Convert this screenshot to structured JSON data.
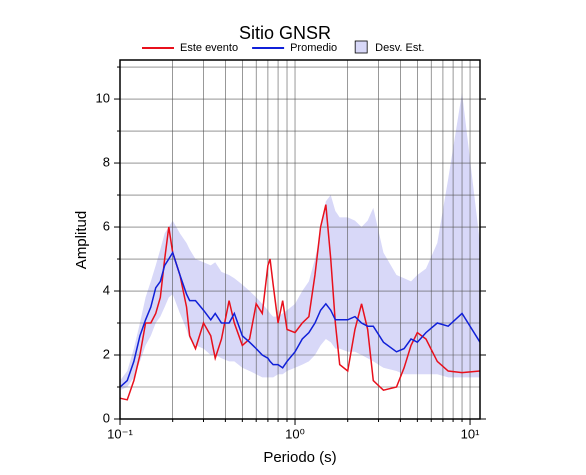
{
  "chart_data": {
    "type": "line",
    "title": "Sitio GNSR",
    "x_label": "Periodo (s)",
    "y_label": "Amplitud",
    "xlog": true,
    "grid": true,
    "xlim": [
      0.1,
      11.4
    ],
    "ylim": [
      0,
      11.22
    ],
    "xticks": [
      {
        "value": 0.1,
        "label": "10⁻¹"
      },
      {
        "value": 1,
        "label": "10⁰"
      },
      {
        "value": 10,
        "label": "10¹"
      }
    ],
    "xminor": [
      0.2,
      0.3,
      0.4,
      0.5,
      0.6,
      0.7,
      0.8,
      0.9,
      2,
      3,
      4,
      5,
      6,
      7,
      8,
      9
    ],
    "yticks": [
      0,
      2,
      4,
      6,
      8,
      10
    ],
    "yminor": [
      1,
      3,
      5,
      7,
      9,
      11
    ],
    "x": [
      0.1,
      0.11,
      0.12,
      0.13,
      0.14,
      0.15,
      0.16,
      0.17,
      0.18,
      0.19,
      0.2,
      0.22,
      0.24,
      0.25,
      0.27,
      0.3,
      0.33,
      0.35,
      0.38,
      0.42,
      0.45,
      0.5,
      0.55,
      0.6,
      0.65,
      0.7,
      0.72,
      0.75,
      0.8,
      0.85,
      0.9,
      1.0,
      1.1,
      1.2,
      1.3,
      1.4,
      1.5,
      1.6,
      1.7,
      1.8,
      2.0,
      2.2,
      2.4,
      2.6,
      2.8,
      3.2,
      3.8,
      4.2,
      4.6,
      5.0,
      5.6,
      6.5,
      7.5,
      9,
      11.4
    ],
    "band": {
      "name": "Desv. Est.",
      "color": "#d8d8f8",
      "lower": [
        0.9,
        1.0,
        1.3,
        1.8,
        2.3,
        2.6,
        3.0,
        3.2,
        3.5,
        3.8,
        3.9,
        3.3,
        2.8,
        2.5,
        2.3,
        2.2,
        2.0,
        2.0,
        1.9,
        1.8,
        1.8,
        1.6,
        1.5,
        1.4,
        1.3,
        1.3,
        1.3,
        1.3,
        1.4,
        1.4,
        1.5,
        1.6,
        1.7,
        1.8,
        2.0,
        2.3,
        2.5,
        2.4,
        2.2,
        2.2,
        2.1,
        2.1,
        2.0,
        1.9,
        1.8,
        1.6,
        1.5,
        1.4,
        1.4,
        1.4,
        1.4,
        1.4,
        1.3,
        1.3,
        1.3
      ],
      "upper": [
        1.2,
        1.5,
        2.2,
        3.0,
        3.8,
        4.3,
        4.8,
        5.3,
        5.8,
        6.0,
        6.2,
        5.8,
        5.5,
        5.3,
        5.0,
        4.9,
        4.8,
        4.9,
        4.6,
        4.5,
        4.4,
        4.2,
        4.0,
        3.8,
        3.6,
        3.4,
        3.3,
        3.2,
        3.2,
        3.3,
        3.4,
        3.6,
        4.0,
        4.3,
        5.0,
        5.8,
        6.8,
        7.0,
        6.5,
        6.3,
        6.3,
        6.2,
        6.0,
        6.2,
        6.6,
        5.2,
        4.5,
        4.4,
        4.3,
        4.5,
        4.7,
        5.5,
        7.5,
        10.2,
        5.5
      ]
    },
    "series": [
      {
        "name": "Este evento",
        "color": "#e8101c",
        "values": [
          0.65,
          0.6,
          1.2,
          2.0,
          3.0,
          3.0,
          3.3,
          3.8,
          5.0,
          6.0,
          5.2,
          4.5,
          3.5,
          2.6,
          2.2,
          3.0,
          2.6,
          1.9,
          2.5,
          3.7,
          3.0,
          2.3,
          2.5,
          3.6,
          3.3,
          4.8,
          5.0,
          4.2,
          3.0,
          3.7,
          2.8,
          2.7,
          3.0,
          3.2,
          4.5,
          6.0,
          6.7,
          5.0,
          3.0,
          1.7,
          1.5,
          2.8,
          3.6,
          2.8,
          1.2,
          0.9,
          1.0,
          1.6,
          2.3,
          2.7,
          2.5,
          1.8,
          1.5,
          1.45,
          1.5
        ]
      },
      {
        "name": "Promedio",
        "color": "#1020d8",
        "values": [
          1.0,
          1.2,
          1.8,
          2.6,
          3.1,
          3.5,
          4.1,
          4.3,
          4.8,
          5.0,
          5.2,
          4.5,
          3.9,
          3.7,
          3.7,
          3.4,
          3.1,
          3.3,
          3.0,
          3.0,
          3.3,
          2.6,
          2.4,
          2.2,
          2.0,
          1.9,
          1.8,
          1.7,
          1.7,
          1.6,
          1.8,
          2.1,
          2.5,
          2.7,
          3.0,
          3.4,
          3.6,
          3.4,
          3.1,
          3.1,
          3.1,
          3.2,
          3.0,
          2.9,
          2.9,
          2.4,
          2.1,
          2.2,
          2.5,
          2.4,
          2.7,
          3.0,
          2.9,
          3.3,
          2.4
        ]
      }
    ]
  }
}
